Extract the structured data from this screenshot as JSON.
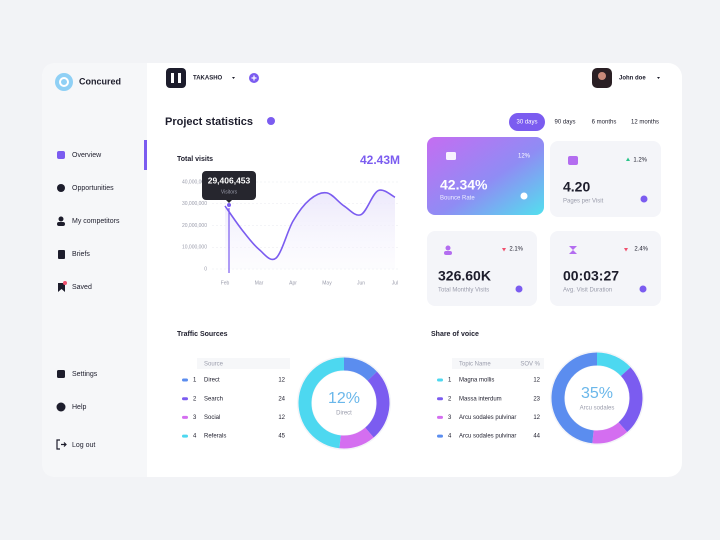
{
  "brand": "Concured",
  "nav": [
    "Overview",
    "Opportunities",
    "My competitors",
    "Briefs",
    "Saved"
  ],
  "nav_bottom": [
    "Settings",
    "Help",
    "Log out"
  ],
  "header": {
    "workspace": "TAKASHO",
    "user": "John doe"
  },
  "page_title": "Project statistics",
  "periods": [
    "30 days",
    "90 days",
    "6 months",
    "12 months"
  ],
  "visits_chart": {
    "type": "line",
    "title": "Total visits",
    "total": "42.43M",
    "categories": [
      "Feb",
      null,
      "Mar",
      null,
      "Apr",
      null,
      "May",
      null,
      "Jun",
      null,
      "Jul"
    ],
    "values": [
      29000000,
      18000000,
      9000000,
      5000000,
      22000000,
      32000000,
      35000000,
      29000000,
      25000000,
      36000000,
      33000000
    ],
    "color": "#7b5cf0",
    "ylim": [
      0,
      40000000
    ],
    "yticks": [
      0,
      {
        "value": 10000000,
        "label": "10,000,000"
      },
      {
        "value": 20000000,
        "label": "20,000,000"
      },
      {
        "value": 30000000,
        "label": "30,000,000"
      },
      {
        "value": 40000000,
        "label": "40,000,000"
      }
    ],
    "grid": true,
    "tooltip": {
      "value": 29406453,
      "label": "29,406,453",
      "name": "Visitors"
    }
  },
  "stats": [
    {
      "value": "42.34%",
      "label": "Bounce Rate",
      "change": "12%"
    },
    {
      "value": "4.20",
      "label": "Pages per Visit",
      "change": "1.2%"
    },
    {
      "value": "326.60K",
      "label": "Total Monthly Visits",
      "change": "2.1%"
    },
    {
      "value": "00:03:27",
      "label": "Avg. Visit Duration",
      "change": "2.4%"
    }
  ],
  "traffic_sources": {
    "title": "Traffic Sources",
    "columns": [
      "Source"
    ],
    "rows": [
      [
        1,
        "Direct",
        12
      ],
      [
        2,
        "Search",
        24
      ],
      [
        3,
        "Social",
        12
      ],
      [
        4,
        "Referals",
        45
      ]
    ],
    "colors": [
      "#5b8def",
      "#7b5cf0",
      "#d46ef0",
      "#4dd8f0"
    ],
    "donut": {
      "value": "12%",
      "label": "Direct"
    }
  },
  "share_of_voice": {
    "title": "Share of voice",
    "columns": [
      "Topic Name",
      "SOV %"
    ],
    "rows": [
      [
        1,
        "Magna mollis",
        12
      ],
      [
        2,
        "Massa interdum",
        23
      ],
      [
        3,
        "Arcu sodales pulvinar",
        12
      ],
      [
        4,
        "Arcu sodales pulvinar",
        44
      ]
    ],
    "colors": [
      "#4dd8f0",
      "#7b5cf0",
      "#d46ef0",
      "#5b8def"
    ],
    "donut": {
      "value": "35%",
      "label": "Arcu sodales"
    }
  }
}
